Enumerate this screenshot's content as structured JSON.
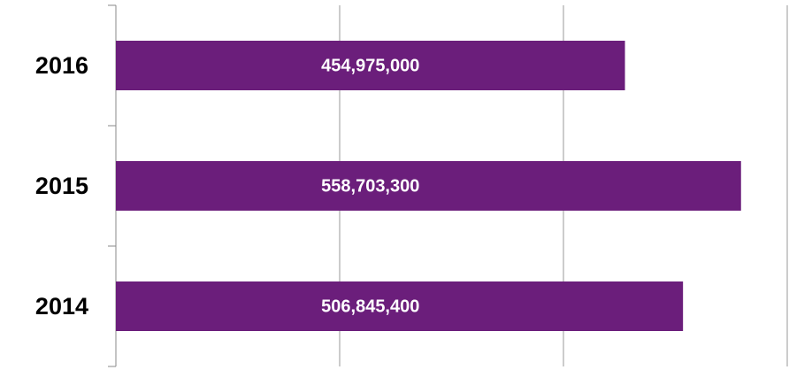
{
  "chart_data": {
    "type": "hbar",
    "categories": [
      "2016",
      "2015",
      "2014"
    ],
    "values": [
      454975000,
      558703300,
      506845400
    ],
    "value_labels": [
      "454,975,000",
      "558,703,300",
      "506,845,400"
    ],
    "color": "#6b1e7b",
    "xlim": [
      0,
      600000000
    ],
    "xticks": [
      0,
      200000000,
      400000000,
      600000000
    ],
    "grid": true
  }
}
